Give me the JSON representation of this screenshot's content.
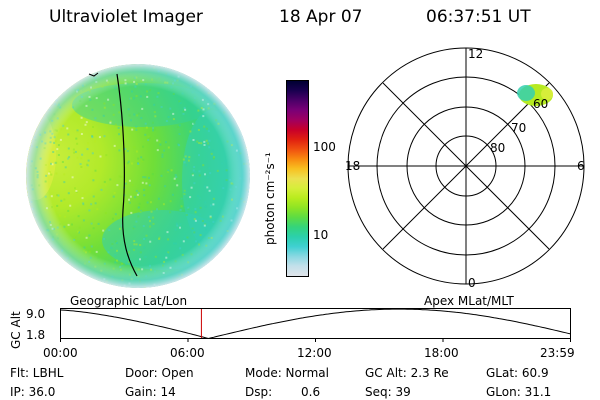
{
  "header": {
    "instrument": "Ultraviolet Imager",
    "date": "18 Apr 07",
    "time": "06:37:51 UT"
  },
  "colorbar": {
    "label": "photon cm⁻²s⁻¹",
    "ticks": [
      "100",
      "10"
    ],
    "colors": [
      "#000033",
      "#1a0050",
      "#4b0068",
      "#7a0076",
      "#a00060",
      "#c8002a",
      "#e02010",
      "#f05010",
      "#f88a10",
      "#f8c020",
      "#ece050",
      "#d6ee3a",
      "#b8ec1e",
      "#8ee424",
      "#5cdc44",
      "#34d47c",
      "#2cd0ac",
      "#40d0d2",
      "#8ad8e2",
      "#c4e0ea",
      "#e0e4ea"
    ]
  },
  "polar": {
    "labels": {
      "top": "12",
      "left": "18",
      "right": "6",
      "bottom": "0",
      "ring60": "60",
      "ring70": "70",
      "ring80": "80"
    }
  },
  "timeline": {
    "left_label": "Geographic Lat/Lon",
    "right_label": "Apex MLat/MLT",
    "axis_title": "GC Alt",
    "y_ticks": [
      "9.0",
      "1.8"
    ],
    "x_ticks": [
      "00:00",
      "06:00",
      "12:00",
      "18:00",
      "23:59"
    ],
    "orbit_color": "#000000",
    "current_time_marker_color": "#cc0000"
  },
  "status": {
    "filter": "Flt: LBHL",
    "door": "Door: Open",
    "mode": "Mode:  Normal",
    "gc_alt": "GC Alt: 2.3 Re",
    "glat": "GLat:  60.9",
    "ip": "IP: 36.0",
    "gain": "Gain: 14",
    "dsp_label": "Dsp:",
    "dsp_value": "0.6",
    "seq": "Seq: 39",
    "glon": "GLon:  31.1"
  }
}
